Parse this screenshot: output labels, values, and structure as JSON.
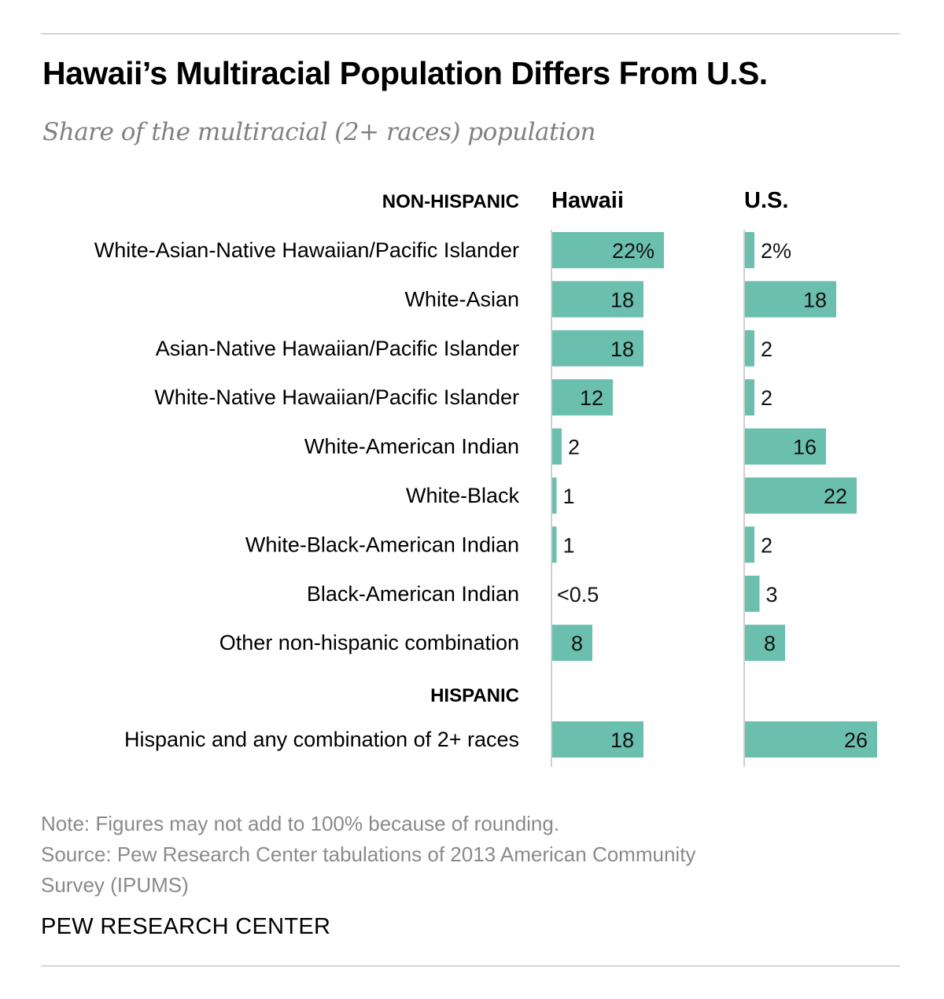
{
  "title": "Hawaii’s Multiracial Population Differs From U.S.",
  "subtitle": "Share of the multiracial (2+ races) population",
  "accent_color": "#6bbfae",
  "note": "Note: Figures may not add to 100% because of rounding.",
  "source_line1": "Source: Pew Research Center tabulations of 2013 American Community",
  "source_line2": "Survey (IPUMS)",
  "brand": "PEW RESEARCH CENTER",
  "chart_data": {
    "type": "bar",
    "orientation": "horizontal",
    "sections": [
      {
        "label": "NON-HISPANIC",
        "categories": [
          "White-Asian-Native Hawaiian/Pacific Islander",
          "White-Asian",
          "Asian-Native Hawaiian/Pacific Islander",
          "White-Native Hawaiian/Pacific Islander",
          "White-American Indian",
          "White-Black",
          "White-Black-American Indian",
          "Black-American Indian",
          "Other non-hispanic combination"
        ]
      },
      {
        "label": "HISPANIC",
        "categories": [
          "Hispanic and any combination of 2+ races"
        ]
      }
    ],
    "series": [
      {
        "name": "Hawaii",
        "values": [
          22,
          18,
          18,
          12,
          2,
          1,
          1,
          0.3,
          8,
          18
        ],
        "labels": [
          "22%",
          "18",
          "18",
          "12",
          "2",
          "1",
          "1",
          "<0.5",
          "8",
          "18"
        ]
      },
      {
        "name": "U.S.",
        "values": [
          2,
          18,
          2,
          2,
          16,
          22,
          2,
          3,
          8,
          26
        ],
        "labels": [
          "2%",
          "18",
          "2",
          "2",
          "16",
          "22",
          "2",
          "3",
          "8",
          "26"
        ]
      }
    ],
    "units": "%",
    "xlim": [
      0,
      26
    ]
  }
}
